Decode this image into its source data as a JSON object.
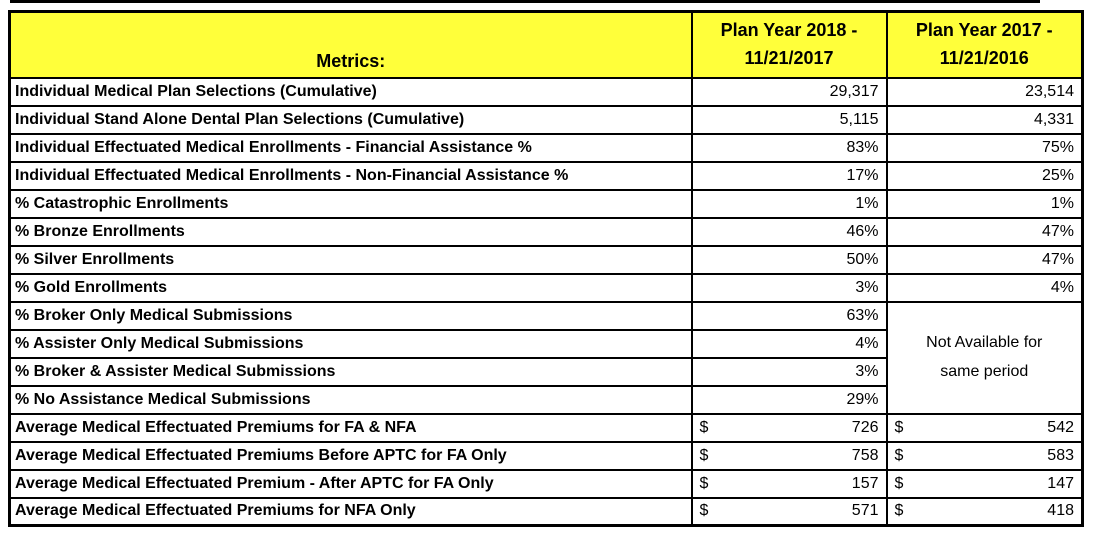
{
  "chart_data": {
    "type": "table",
    "columns": [
      "Metrics:",
      "Plan Year 2018 -\n11/21/2017",
      "Plan Year 2017 -\n11/21/2016"
    ],
    "currency_symbol": "$",
    "merged_note": "Not Available for same period",
    "merged_rowspan": 4,
    "rows": [
      {
        "metric": "Individual Medical Plan Selections (Cumulative)",
        "v2018": "29,317",
        "v2017": "23,514",
        "currency": false,
        "merged_start": false
      },
      {
        "metric": "Individual Stand Alone Dental Plan Selections (Cumulative)",
        "v2018": "5,115",
        "v2017": "4,331",
        "currency": false,
        "merged_start": false
      },
      {
        "metric": "Individual Effectuated Medical Enrollments - Financial Assistance %",
        "v2018": "83%",
        "v2017": "75%",
        "currency": false,
        "merged_start": false
      },
      {
        "metric": "Individual Effectuated Medical Enrollments - Non-Financial Assistance %",
        "v2018": "17%",
        "v2017": "25%",
        "currency": false,
        "merged_start": false
      },
      {
        "metric": "% Catastrophic Enrollments",
        "v2018": "1%",
        "v2017": "1%",
        "currency": false,
        "merged_start": false
      },
      {
        "metric": "% Bronze Enrollments",
        "v2018": "46%",
        "v2017": "47%",
        "currency": false,
        "merged_start": false
      },
      {
        "metric": "% Silver Enrollments",
        "v2018": "50%",
        "v2017": "47%",
        "currency": false,
        "merged_start": false
      },
      {
        "metric": "% Gold Enrollments",
        "v2018": "3%",
        "v2017": "4%",
        "currency": false,
        "merged_start": false
      },
      {
        "metric": "% Broker Only Medical Submissions",
        "v2018": "63%",
        "v2017": null,
        "currency": false,
        "merged_start": true
      },
      {
        "metric": "% Assister Only Medical Submissions",
        "v2018": "4%",
        "v2017": null,
        "currency": false,
        "merged_start": false
      },
      {
        "metric": "% Broker & Assister Medical Submissions",
        "v2018": "3%",
        "v2017": null,
        "currency": false,
        "merged_start": false
      },
      {
        "metric": "% No Assistance Medical Submissions",
        "v2018": "29%",
        "v2017": null,
        "currency": false,
        "merged_start": false
      },
      {
        "metric": "Average Medical Effectuated Premiums for FA & NFA",
        "v2018": "726",
        "v2017": "542",
        "currency": true,
        "merged_start": false
      },
      {
        "metric": "Average Medical Effectuated Premiums Before APTC for FA Only",
        "v2018": "758",
        "v2017": "583",
        "currency": true,
        "merged_start": false
      },
      {
        "metric": "Average Medical Effectuated Premium - After APTC for FA Only",
        "v2018": "157",
        "v2017": "147",
        "currency": true,
        "merged_start": false
      },
      {
        "metric": "Average Medical Effectuated Premiums for NFA Only",
        "v2018": "571",
        "v2017": "418",
        "currency": true,
        "merged_start": false
      }
    ]
  },
  "colors": {
    "header_bg": "#FFFF3A",
    "border": "#000000",
    "text": "#000000",
    "cell_bg": "#FFFFFF"
  }
}
